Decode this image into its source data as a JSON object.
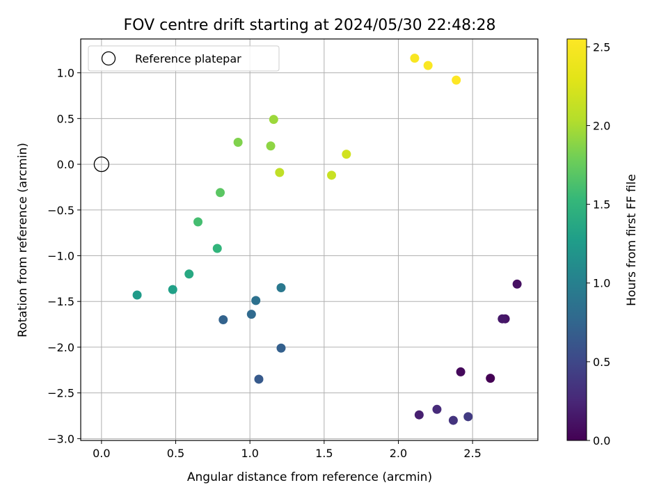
{
  "chart_data": {
    "type": "scatter",
    "title": "FOV centre drift starting at 2024/05/30 22:48:28",
    "xlabel": "Angular distance from reference (arcmin)",
    "ylabel": "Rotation from reference (arcmin)",
    "xlim": [
      -0.14,
      2.94
    ],
    "ylim": [
      -3.02,
      1.37
    ],
    "x_ticks": [
      0.0,
      0.5,
      1.0,
      1.5,
      2.0,
      2.5
    ],
    "x_tick_labels": [
      "0.0",
      "0.5",
      "1.0",
      "1.5",
      "2.0",
      "2.5"
    ],
    "y_ticks": [
      -3.0,
      -2.5,
      -2.0,
      -1.5,
      -1.0,
      -0.5,
      0.0,
      0.5,
      1.0
    ],
    "y_tick_labels": [
      "−3.0",
      "−2.5",
      "−2.0",
      "−1.5",
      "−1.0",
      "−0.5",
      "0.0",
      "0.5",
      "1.0"
    ],
    "grid": true,
    "legend": {
      "position": "top-left",
      "entries": [
        "Reference platepar"
      ]
    },
    "reference_point": {
      "x": 0.0,
      "y": 0.0
    },
    "colorbar": {
      "label": "Hours from first FF file",
      "range": [
        0.0,
        2.55
      ],
      "ticks": [
        0.0,
        0.5,
        1.0,
        1.5,
        2.0,
        2.5
      ],
      "tick_labels": [
        "0.0",
        "0.5",
        "1.0",
        "1.5",
        "2.0",
        "2.5"
      ],
      "colormap": "viridis"
    },
    "points": [
      {
        "x": 2.62,
        "y": -2.34,
        "c": 0.0
      },
      {
        "x": 2.42,
        "y": -2.27,
        "c": 0.05
      },
      {
        "x": 2.8,
        "y": -1.31,
        "c": 0.1
      },
      {
        "x": 2.72,
        "y": -1.69,
        "c": 0.12
      },
      {
        "x": 2.7,
        "y": -1.69,
        "c": 0.15
      },
      {
        "x": 2.14,
        "y": -2.74,
        "c": 0.2
      },
      {
        "x": 2.26,
        "y": -2.68,
        "c": 0.28
      },
      {
        "x": 2.37,
        "y": -2.8,
        "c": 0.35
      },
      {
        "x": 2.47,
        "y": -2.76,
        "c": 0.4
      },
      {
        "x": 1.06,
        "y": -2.35,
        "c": 0.65
      },
      {
        "x": 1.21,
        "y": -2.01,
        "c": 0.7
      },
      {
        "x": 0.82,
        "y": -1.7,
        "c": 0.72
      },
      {
        "x": 1.01,
        "y": -1.64,
        "c": 0.78
      },
      {
        "x": 1.04,
        "y": -1.49,
        "c": 0.85
      },
      {
        "x": 1.21,
        "y": -1.35,
        "c": 0.92
      },
      {
        "x": 0.24,
        "y": -1.43,
        "c": 1.25
      },
      {
        "x": 0.48,
        "y": -1.37,
        "c": 1.3
      },
      {
        "x": 0.59,
        "y": -1.2,
        "c": 1.38
      },
      {
        "x": 0.78,
        "y": -0.92,
        "c": 1.5
      },
      {
        "x": 0.65,
        "y": -0.63,
        "c": 1.6
      },
      {
        "x": 0.8,
        "y": -0.31,
        "c": 1.7
      },
      {
        "x": 0.92,
        "y": 0.24,
        "c": 1.85
      },
      {
        "x": 1.14,
        "y": 0.2,
        "c": 1.9
      },
      {
        "x": 1.16,
        "y": 0.49,
        "c": 1.95
      },
      {
        "x": 1.2,
        "y": -0.09,
        "c": 2.1
      },
      {
        "x": 1.55,
        "y": -0.12,
        "c": 2.15
      },
      {
        "x": 1.65,
        "y": 0.11,
        "c": 2.2
      },
      {
        "x": 2.11,
        "y": 1.16,
        "c": 2.5
      },
      {
        "x": 2.2,
        "y": 1.08,
        "c": 2.52
      },
      {
        "x": 2.39,
        "y": 0.92,
        "c": 2.55
      }
    ]
  }
}
